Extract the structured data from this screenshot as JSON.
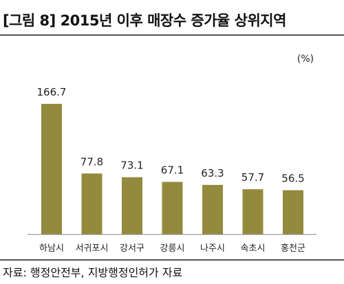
{
  "header": {
    "title": "[그림 8] 2015년 이후 매장수 증가율 상위지역"
  },
  "footer": {
    "source": "자료: 행정안전부, 지방행정인허가 자료"
  },
  "colors": {
    "bar": "#948a3e",
    "axis": "#888888"
  },
  "chart_data": {
    "type": "bar",
    "title": "",
    "unit": "(%)",
    "categories": [
      "하남시",
      "서귀포시",
      "강서구",
      "강릉시",
      "나주시",
      "속초시",
      "홍천군"
    ],
    "values": [
      166.7,
      77.8,
      73.1,
      67.1,
      63.3,
      57.7,
      56.5
    ],
    "value_labels": [
      "166.7",
      "77.8",
      "73.1",
      "67.1",
      "63.3",
      "57.7",
      "56.5"
    ],
    "xlabel": "",
    "ylabel": "",
    "ylim": [
      0,
      200
    ],
    "grid": false,
    "legend": "none"
  }
}
